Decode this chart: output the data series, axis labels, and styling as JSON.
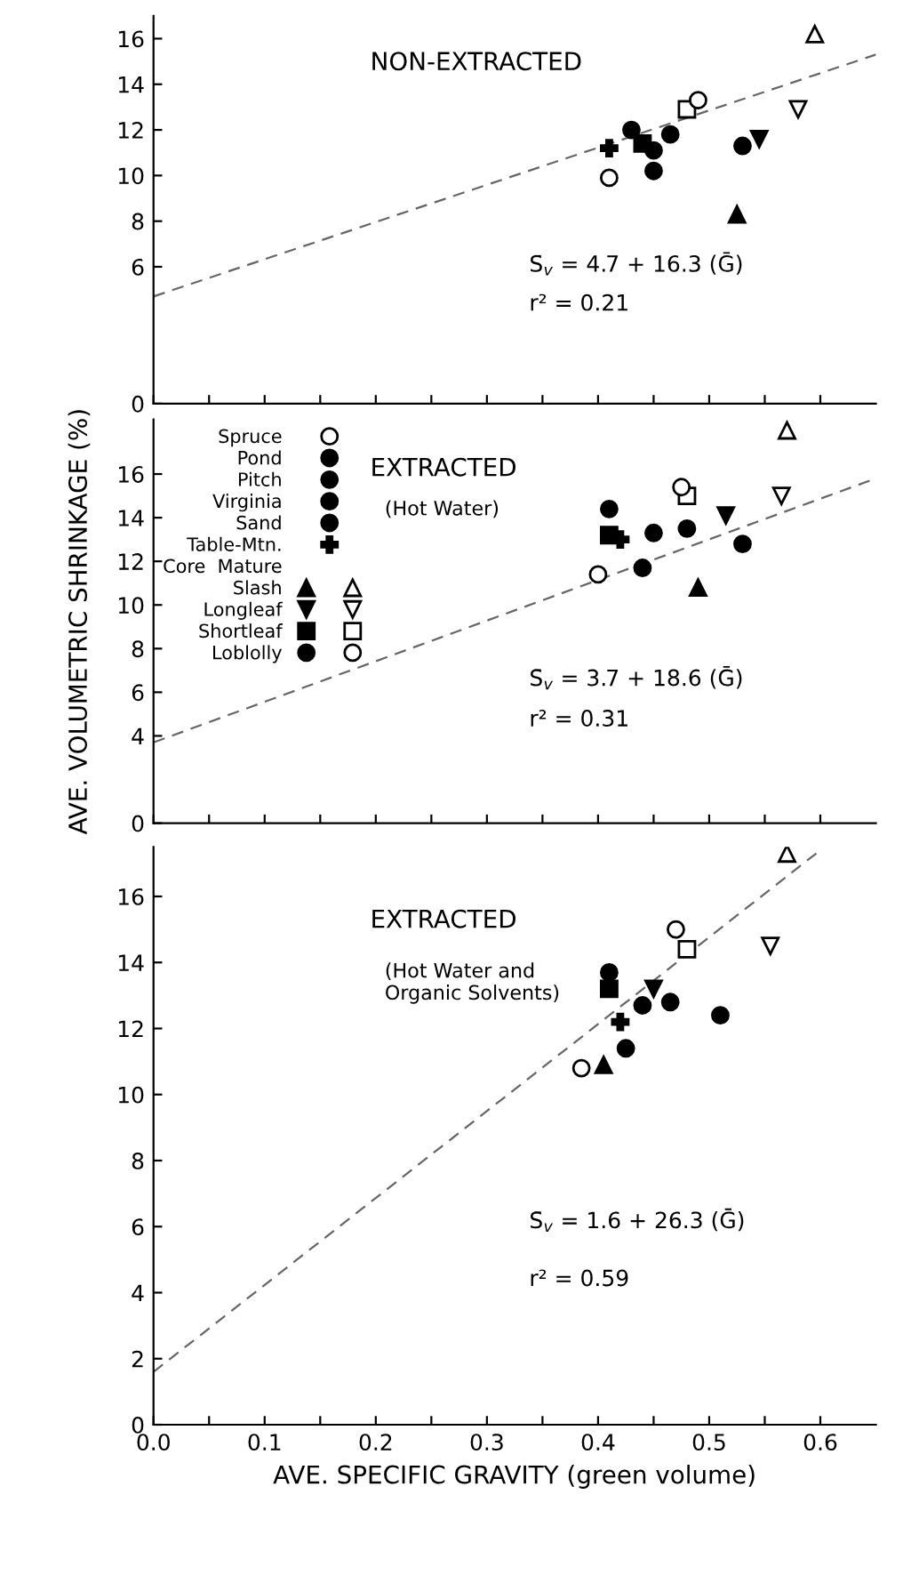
{
  "chart_data": [
    {
      "type": "scatter",
      "title": "NON-EXTRACTED",
      "xlim": [
        0,
        0.65
      ],
      "ylim": [
        0,
        17
      ],
      "xticks": [
        {
          "value": 0,
          "label": null
        },
        {
          "value": 0.05,
          "label": null
        },
        {
          "value": 0.1,
          "label": null
        },
        {
          "value": 0.15,
          "label": null
        },
        {
          "value": 0.2,
          "label": null
        },
        {
          "value": 0.25,
          "label": null
        },
        {
          "value": 0.3,
          "label": null
        },
        {
          "value": 0.35,
          "label": null
        },
        {
          "value": 0.4,
          "label": null
        },
        {
          "value": 0.45,
          "label": null
        },
        {
          "value": 0.5,
          "label": null
        },
        {
          "value": 0.55,
          "label": null
        },
        {
          "value": 0.6,
          "label": null
        }
      ],
      "yticks": [
        0,
        6,
        8,
        10,
        12,
        14,
        16
      ],
      "tick_labels": "y",
      "annotations": [
        "S̄$_{v}$ = 4.7 + 16.3 (Ḡ)",
        "r² = 0.21"
      ],
      "series": [
        {
          "color": "#ffffff",
          "marker": "circle",
          "x": [
            0.41
          ],
          "values": [
            9.9
          ]
        },
        {
          "color": "#000000",
          "marker": "circle",
          "x": [
            0.45
          ],
          "values": [
            11.1
          ]
        },
        {
          "color": "#000000",
          "marker": "circle",
          "x": [
            0.53
          ],
          "values": [
            11.3
          ]
        },
        {
          "color": "#000000",
          "marker": "circle",
          "x": [
            0.465
          ],
          "values": [
            11.8
          ]
        },
        {
          "color": "#000000",
          "marker": "circle",
          "x": [
            0.45
          ],
          "values": [
            10.2
          ]
        },
        {
          "color": "#000000",
          "marker": "cross",
          "x": [
            0.41
          ],
          "values": [
            11.2
          ]
        },
        {
          "color": "#000000",
          "marker": "triangle",
          "x": [
            0.525
          ],
          "values": [
            8.3
          ]
        },
        {
          "color": "#ffffff",
          "marker": "triangle",
          "x": [
            0.595
          ],
          "values": [
            16.2
          ]
        },
        {
          "color": "#000000",
          "marker": "triangle_down",
          "x": [
            0.545
          ],
          "values": [
            11.6
          ]
        },
        {
          "color": "#ffffff",
          "marker": "triangle_down",
          "x": [
            0.58
          ],
          "values": [
            12.9
          ]
        },
        {
          "color": "#000000",
          "marker": "square",
          "x": [
            0.44
          ],
          "values": [
            11.4
          ]
        },
        {
          "color": "#ffffff",
          "marker": "square",
          "x": [
            0.48
          ],
          "values": [
            12.9
          ]
        },
        {
          "color": "#000000",
          "marker": "circle",
          "x": [
            0.43
          ],
          "values": [
            12.0
          ]
        },
        {
          "color": "#ffffff",
          "marker": "circle",
          "x": [
            0.49
          ],
          "values": [
            13.3
          ]
        },
        {
          "type": "line",
          "color": "#666666",
          "line_style": "dashed",
          "x": [
            0,
            0.65
          ],
          "values": [
            4.7,
            15.3
          ]
        }
      ]
    },
    {
      "type": "scatter",
      "title": "EXTRACTED",
      "subtitle": "(Hot Water)",
      "xlim": [
        0,
        0.65
      ],
      "ylim": [
        0,
        18.5
      ],
      "xticks": [
        {
          "value": 0,
          "label": null
        },
        {
          "value": 0.05,
          "label": null
        },
        {
          "value": 0.1,
          "label": null
        },
        {
          "value": 0.15,
          "label": null
        },
        {
          "value": 0.2,
          "label": null
        },
        {
          "value": 0.25,
          "label": null
        },
        {
          "value": 0.3,
          "label": null
        },
        {
          "value": 0.35,
          "label": null
        },
        {
          "value": 0.4,
          "label": null
        },
        {
          "value": 0.45,
          "label": null
        },
        {
          "value": 0.5,
          "label": null
        },
        {
          "value": 0.55,
          "label": null
        },
        {
          "value": 0.6,
          "label": null
        }
      ],
      "yticks": [
        0,
        4,
        6,
        8,
        10,
        12,
        14,
        16
      ],
      "tick_labels": "y",
      "ylabel": "AVE. VOLUMETRIC SHRINKAGE (%)",
      "legend": "top left",
      "legend_title": "Core  Mature",
      "annotations": [
        "S̄$_{v}$ = 3.7 + 18.6 (Ḡ)",
        "r² = 0.31"
      ],
      "series": [
        {
          "name": "Spruce",
          "color": "#ffffff",
          "marker": "circle",
          "x": [
            0.4
          ],
          "values": [
            11.4
          ]
        },
        {
          "name": "Pond",
          "color": "#000000",
          "marker": "circle",
          "x": [
            0.44
          ],
          "values": [
            11.7
          ]
        },
        {
          "name": "Pitch",
          "color": "#000000",
          "marker": "circle",
          "x": [
            0.53
          ],
          "values": [
            12.8
          ]
        },
        {
          "name": "Virginia",
          "color": "#000000",
          "marker": "circle",
          "x": [
            0.45
          ],
          "values": [
            13.3
          ]
        },
        {
          "name": "Sand",
          "color": "#000000",
          "marker": "circle",
          "x": [
            0.48
          ],
          "values": [
            13.5
          ]
        },
        {
          "name": "Table-Mtn.",
          "color": "#000000",
          "marker": "cross",
          "x": [
            0.42
          ],
          "values": [
            13.0
          ]
        },
        {
          "name": "Slash",
          "color": "#000000",
          "marker": "triangle",
          "x": [
            0.49
          ],
          "values": [
            10.8
          ]
        },
        {
          "color": "#ffffff",
          "marker": "triangle",
          "x": [
            0.57
          ],
          "values": [
            18.0
          ]
        },
        {
          "name": "Longleaf",
          "color": "#000000",
          "marker": "triangle_down",
          "x": [
            0.515
          ],
          "values": [
            14.1
          ]
        },
        {
          "color": "#ffffff",
          "marker": "triangle_down",
          "x": [
            0.565
          ],
          "values": [
            15.0
          ]
        },
        {
          "name": "Shortleaf",
          "color": "#000000",
          "marker": "square",
          "x": [
            0.41
          ],
          "values": [
            13.2
          ]
        },
        {
          "color": "#ffffff",
          "marker": "square",
          "x": [
            0.48
          ],
          "values": [
            15.0
          ]
        },
        {
          "name": "Loblolly",
          "color": "#000000",
          "marker": "circle",
          "x": [
            0.41
          ],
          "values": [
            14.4
          ]
        },
        {
          "color": "#ffffff",
          "marker": "circle",
          "x": [
            0.475
          ],
          "values": [
            15.4
          ]
        },
        {
          "type": "line",
          "color": "#666666",
          "line_style": "dashed",
          "x": [
            0,
            0.65
          ],
          "values": [
            3.7,
            15.8
          ]
        }
      ]
    },
    {
      "type": "scatter",
      "title": "EXTRACTED",
      "subtitle": "(Hot Water and\nOrganic Solvents)",
      "xlim": [
        0,
        0.65
      ],
      "ylim": [
        0,
        17.5
      ],
      "xticks": [
        {
          "value": 0,
          "label": "0.0"
        },
        {
          "value": 0.05,
          "label": null
        },
        {
          "value": 0.1,
          "label": "0.1"
        },
        {
          "value": 0.15,
          "label": null
        },
        {
          "value": 0.2,
          "label": "0.2"
        },
        {
          "value": 0.25,
          "label": null
        },
        {
          "value": 0.3,
          "label": "0.3"
        },
        {
          "value": 0.35,
          "label": null
        },
        {
          "value": 0.4,
          "label": "0.4"
        },
        {
          "value": 0.45,
          "label": null
        },
        {
          "value": 0.5,
          "label": "0.5"
        },
        {
          "value": 0.55,
          "label": null
        },
        {
          "value": 0.6,
          "label": "0.6"
        }
      ],
      "yticks": [
        0,
        2,
        4,
        6,
        8,
        10,
        12,
        14,
        16
      ],
      "xlabel": "AVE. SPECIFIC GRAVITY (green volume)",
      "annotations": [
        "S̄$_{v}$ = 1.6 + 26.3 (Ḡ)",
        "r² = 0.59"
      ],
      "series": [
        {
          "color": "#ffffff",
          "marker": "circle",
          "x": [
            0.385
          ],
          "values": [
            10.8
          ]
        },
        {
          "color": "#000000",
          "marker": "circle",
          "x": [
            0.425
          ],
          "values": [
            11.4
          ]
        },
        {
          "color": "#000000",
          "marker": "circle",
          "x": [
            0.51
          ],
          "values": [
            12.4
          ]
        },
        {
          "color": "#000000",
          "marker": "circle",
          "x": [
            0.44
          ],
          "values": [
            12.7
          ]
        },
        {
          "color": "#000000",
          "marker": "circle",
          "x": [
            0.465
          ],
          "values": [
            12.8
          ]
        },
        {
          "color": "#000000",
          "marker": "cross",
          "x": [
            0.42
          ],
          "values": [
            12.2
          ]
        },
        {
          "color": "#000000",
          "marker": "triangle",
          "x": [
            0.405
          ],
          "values": [
            10.9
          ]
        },
        {
          "color": "#ffffff",
          "marker": "triangle",
          "x": [
            0.57
          ],
          "values": [
            17.3
          ]
        },
        {
          "color": "#000000",
          "marker": "triangle_down",
          "x": [
            0.45
          ],
          "values": [
            13.2
          ]
        },
        {
          "color": "#ffffff",
          "marker": "triangle_down",
          "x": [
            0.555
          ],
          "values": [
            14.5
          ]
        },
        {
          "color": "#000000",
          "marker": "square",
          "x": [
            0.41
          ],
          "values": [
            13.2
          ]
        },
        {
          "color": "#ffffff",
          "marker": "square",
          "x": [
            0.48
          ],
          "values": [
            14.4
          ]
        },
        {
          "color": "#000000",
          "marker": "circle",
          "x": [
            0.41
          ],
          "values": [
            13.7
          ]
        },
        {
          "color": "#ffffff",
          "marker": "circle",
          "x": [
            0.47
          ],
          "values": [
            15.0
          ]
        },
        {
          "type": "line",
          "color": "#666666",
          "line_style": "dashed",
          "x": [
            0,
            0.6
          ],
          "values": [
            1.6,
            17.4
          ]
        }
      ]
    }
  ]
}
